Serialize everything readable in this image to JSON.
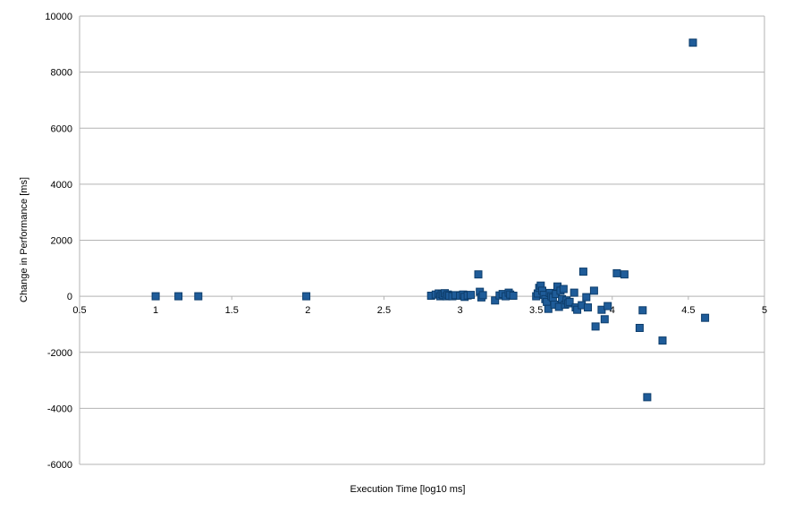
{
  "chart_data": {
    "type": "scatter",
    "title": "",
    "xlabel": "Execution Time [log10 ms]",
    "ylabel": "Change in Performance [ms]",
    "xlim": [
      0.5,
      5
    ],
    "ylim": [
      -6000,
      10000
    ],
    "x_ticks": [
      "0.5",
      "1",
      "1.5",
      "2",
      "2.5",
      "3",
      "3.5",
      "4",
      "4.5",
      "5"
    ],
    "y_ticks": [
      "-6000",
      "-4000",
      "-2000",
      "0",
      "2000",
      "4000",
      "6000",
      "8000",
      "10000"
    ],
    "grid": "horizontal",
    "legend": "none",
    "marker": "square",
    "colors": {
      "marker_fill": "#1f5c99",
      "marker_edge": "#0d3d6b",
      "grid": "#b3b3b3",
      "axis": "#b3b3b3"
    },
    "series": [
      {
        "points": [
          [
            1.0,
            0
          ],
          [
            1.15,
            0
          ],
          [
            1.28,
            0
          ],
          [
            1.99,
            0
          ],
          [
            2.81,
            20
          ],
          [
            2.84,
            60
          ],
          [
            2.86,
            100
          ],
          [
            2.87,
            0
          ],
          [
            2.88,
            80
          ],
          [
            2.89,
            40
          ],
          [
            2.9,
            110
          ],
          [
            2.91,
            0
          ],
          [
            2.92,
            60
          ],
          [
            2.93,
            20
          ],
          [
            2.95,
            0
          ],
          [
            2.97,
            40
          ],
          [
            3.0,
            20
          ],
          [
            3.02,
            60
          ],
          [
            3.03,
            -20
          ],
          [
            3.05,
            30
          ],
          [
            3.07,
            50
          ],
          [
            3.12,
            780
          ],
          [
            3.13,
            160
          ],
          [
            3.14,
            -40
          ],
          [
            3.15,
            40
          ],
          [
            3.23,
            -150
          ],
          [
            3.26,
            30
          ],
          [
            3.28,
            80
          ],
          [
            3.3,
            0
          ],
          [
            3.32,
            130
          ],
          [
            3.33,
            60
          ],
          [
            3.35,
            20
          ],
          [
            3.5,
            0
          ],
          [
            3.51,
            100
          ],
          [
            3.52,
            300
          ],
          [
            3.53,
            380
          ],
          [
            3.54,
            200
          ],
          [
            3.55,
            50
          ],
          [
            3.56,
            -100
          ],
          [
            3.57,
            -200
          ],
          [
            3.58,
            -450
          ],
          [
            3.59,
            120
          ],
          [
            3.6,
            0
          ],
          [
            3.61,
            -50
          ],
          [
            3.62,
            -300
          ],
          [
            3.63,
            80
          ],
          [
            3.64,
            350
          ],
          [
            3.65,
            -380
          ],
          [
            3.66,
            200
          ],
          [
            3.67,
            -100
          ],
          [
            3.68,
            260
          ],
          [
            3.69,
            -300
          ],
          [
            3.7,
            -150
          ],
          [
            3.71,
            -250
          ],
          [
            3.72,
            -200
          ],
          [
            3.75,
            130
          ],
          [
            3.76,
            -400
          ],
          [
            3.77,
            -480
          ],
          [
            3.8,
            -320
          ],
          [
            3.81,
            880
          ],
          [
            3.83,
            -30
          ],
          [
            3.84,
            -400
          ],
          [
            3.88,
            200
          ],
          [
            3.89,
            -1080
          ],
          [
            3.93,
            -480
          ],
          [
            3.95,
            -820
          ],
          [
            3.97,
            -350
          ],
          [
            4.03,
            820
          ],
          [
            4.08,
            780
          ],
          [
            4.18,
            -1130
          ],
          [
            4.2,
            -500
          ],
          [
            4.23,
            -3600
          ],
          [
            4.33,
            -1580
          ],
          [
            4.53,
            9050
          ],
          [
            4.61,
            -770
          ]
        ]
      }
    ]
  }
}
